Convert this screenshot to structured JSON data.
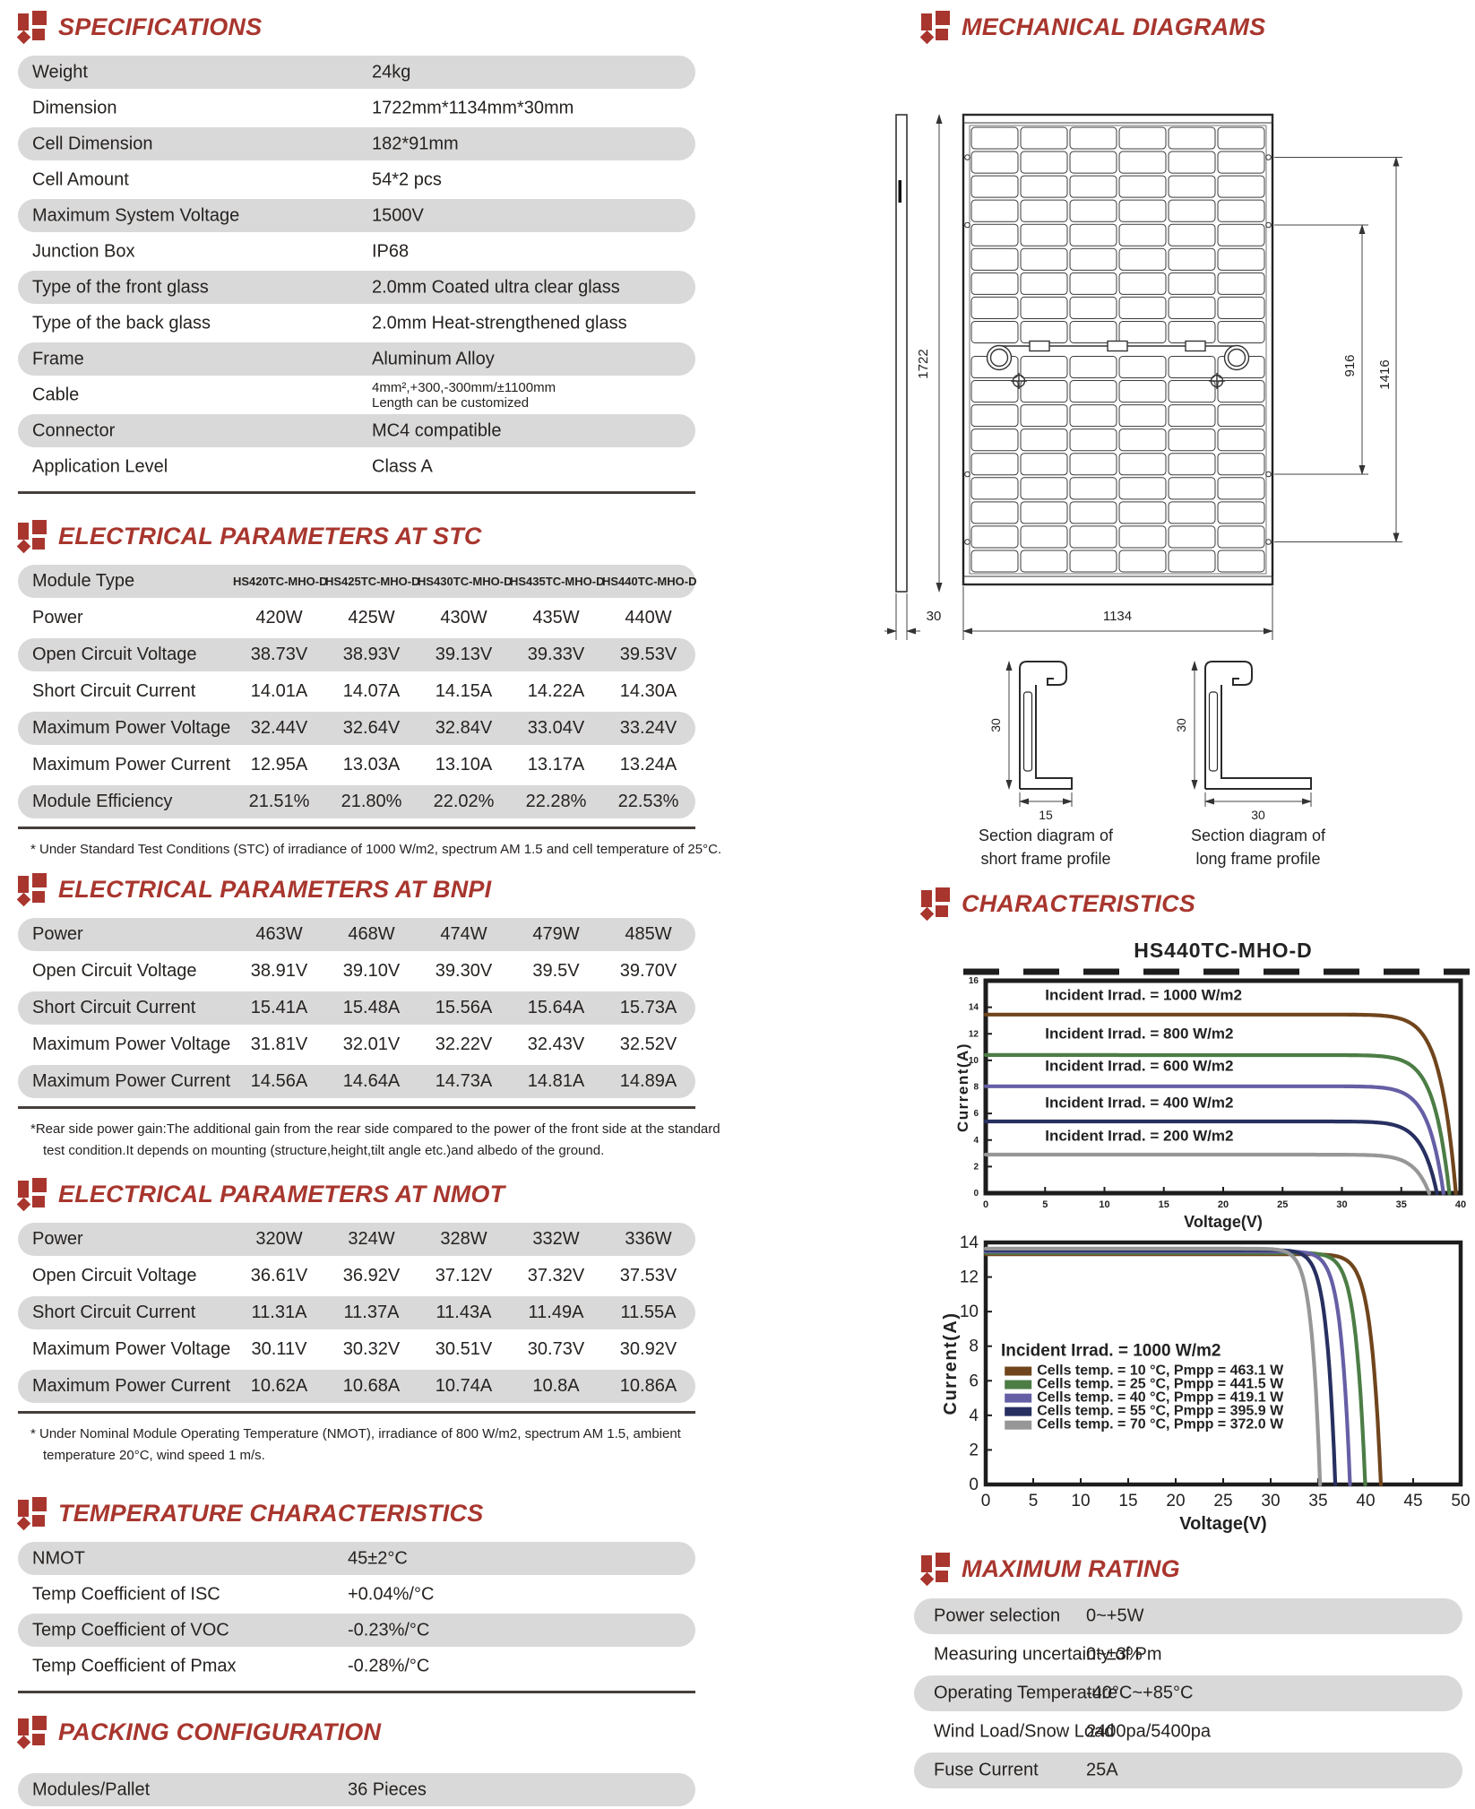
{
  "sections": {
    "specifications": {
      "title": "SPECIFICATIONS",
      "rows": [
        {
          "label": "Weight",
          "value": "24kg"
        },
        {
          "label": "Dimension",
          "value": "1722mm*1134mm*30mm"
        },
        {
          "label": "Cell Dimension",
          "value": "182*91mm"
        },
        {
          "label": "Cell Amount",
          "value": "54*2 pcs"
        },
        {
          "label": "Maximum System Voltage",
          "value": "1500V"
        },
        {
          "label": "Junction Box",
          "value": "IP68"
        },
        {
          "label": "Type of the front glass",
          "value": "2.0mm Coated ultra clear glass"
        },
        {
          "label": "Type of the back glass",
          "value": "2.0mm Heat-strengthened glass"
        },
        {
          "label": "Frame",
          "value": "Aluminum Alloy"
        },
        {
          "label": "Cable",
          "value": "4mm²,+300,-300mm/±1100mm",
          "value2": "Length can be customized"
        },
        {
          "label": "Connector",
          "value": "MC4 compatible"
        },
        {
          "label": "Application Level",
          "value": "Class A"
        }
      ]
    },
    "stc": {
      "title": "ELECTRICAL PARAMETERS AT STC",
      "module_type_label": "Module Type",
      "modules": [
        "HS420TC-MHO-D",
        "HS425TC-MHO-D",
        "HS430TC-MHO-D",
        "HS435TC-MHO-D",
        "HS440TC-MHO-D"
      ],
      "rows": [
        {
          "label": "Power",
          "values": [
            "420W",
            "425W",
            "430W",
            "435W",
            "440W"
          ]
        },
        {
          "label": "Open Circuit Voltage",
          "values": [
            "38.73V",
            "38.93V",
            "39.13V",
            "39.33V",
            "39.53V"
          ]
        },
        {
          "label": "Short Circuit Current",
          "values": [
            "14.01A",
            "14.07A",
            "14.15A",
            "14.22A",
            "14.30A"
          ]
        },
        {
          "label": "Maximum Power Voltage",
          "values": [
            "32.44V",
            "32.64V",
            "32.84V",
            "33.04V",
            "33.24V"
          ]
        },
        {
          "label": "Maximum Power Current",
          "values": [
            "12.95A",
            "13.03A",
            "13.10A",
            "13.17A",
            "13.24A"
          ]
        },
        {
          "label": "Module Efficiency",
          "values": [
            "21.51%",
            "21.80%",
            "22.02%",
            "22.28%",
            "22.53%"
          ]
        }
      ],
      "footnote": "* Under Standard Test Conditions (STC) of irradiance of 1000 W/m2, spectrum AM 1.5 and cell temperature of 25°C."
    },
    "bnpi": {
      "title": "ELECTRICAL PARAMETERS AT BNPI",
      "rows": [
        {
          "label": "Power",
          "values": [
            "463W",
            "468W",
            "474W",
            "479W",
            "485W"
          ]
        },
        {
          "label": "Open Circuit Voltage",
          "values": [
            "38.91V",
            "39.10V",
            "39.30V",
            "39.5V",
            "39.70V"
          ]
        },
        {
          "label": "Short Circuit Current",
          "values": [
            "15.41A",
            "15.48A",
            "15.56A",
            "15.64A",
            "15.73A"
          ]
        },
        {
          "label": "Maximum Power Voltage",
          "values": [
            "31.81V",
            "32.01V",
            "32.22V",
            "32.43V",
            "32.52V"
          ]
        },
        {
          "label": "Maximum Power Current",
          "values": [
            "14.56A",
            "14.64A",
            "14.73A",
            "14.81A",
            "14.89A"
          ]
        }
      ],
      "footnote_lines": [
        "*Rear side power gain:The additional gain from the rear side compared to the power of the front side at the standard",
        "test condition.It depends on mounting (structure,height,tilt angle etc.)and albedo of the ground."
      ]
    },
    "nmot": {
      "title": "ELECTRICAL PARAMETERS AT NMOT",
      "rows": [
        {
          "label": "Power",
          "values": [
            "320W",
            "324W",
            "328W",
            "332W",
            "336W"
          ]
        },
        {
          "label": "Open Circuit Voltage",
          "values": [
            "36.61V",
            "36.92V",
            "37.12V",
            "37.32V",
            "37.53V"
          ]
        },
        {
          "label": "Short Circuit Current",
          "values": [
            "11.31A",
            "11.37A",
            "11.43A",
            "11.49A",
            "11.55A"
          ]
        },
        {
          "label": "Maximum Power Voltage",
          "values": [
            "30.11V",
            "30.32V",
            "30.51V",
            "30.73V",
            "30.92V"
          ]
        },
        {
          "label": "Maximum Power Current",
          "values": [
            "10.62A",
            "10.68A",
            "10.74A",
            "10.8A",
            "10.86A"
          ]
        }
      ],
      "footnote_lines": [
        "* Under Nominal Module Operating Temperature (NMOT), irradiance of 800 W/m2, spectrum AM 1.5, ambient",
        "temperature 20°C, wind speed 1 m/s."
      ]
    },
    "temperature": {
      "title": "TEMPERATURE CHARACTERISTICS",
      "rows": [
        {
          "label": "NMOT",
          "value": "45±2°C"
        },
        {
          "label": "Temp Coefficient of ISC",
          "value": "+0.04%/°C"
        },
        {
          "label": "Temp Coefficient of VOC",
          "value": "-0.23%/°C"
        },
        {
          "label": "Temp Coefficient of Pmax",
          "value": "-0.28%/°C"
        }
      ]
    },
    "packing": {
      "title": "PACKING CONFIGURATION",
      "rows": [
        {
          "label": "Modules/Pallet",
          "value": "36 Pieces"
        }
      ]
    },
    "mechanical": {
      "title": "MECHANICAL DIAGRAMS",
      "panel_height": "1722",
      "panel_width": "1134",
      "panel_depth": "30",
      "hole_span_inner": "916",
      "hole_span_outer": "1416",
      "short_frame": {
        "height": "30",
        "width": "15",
        "caption1": "Section diagram of",
        "caption2": "short frame profile"
      },
      "long_frame": {
        "height": "30",
        "width": "30",
        "caption1": "Section diagram of",
        "caption2": "long frame profile"
      }
    },
    "characteristics": {
      "title": "CHARACTERISTICS"
    },
    "maximum_rating": {
      "title": "MAXIMUM RATING",
      "rows": [
        {
          "label": "Power selection",
          "value": "0~+5W"
        },
        {
          "label": "Measuring uncertainty of Pm",
          "value": "0~±3%"
        },
        {
          "label": "Operating Temperature",
          "value": "-40°C~+85°C"
        },
        {
          "label": "Wind Load/Snow Load",
          "value": "2400pa/5400pa"
        },
        {
          "label": "Fuse Current",
          "value": "25A"
        }
      ]
    }
  },
  "chart_data": [
    {
      "type": "line",
      "title": "HS440TC-MHO-D",
      "xlabel": "Voltage(V)",
      "ylabel": "Current(A)",
      "xlim": [
        0,
        40
      ],
      "ylim": [
        0,
        16
      ],
      "xtick_step": 5,
      "ytick_step": 2,
      "grid": false,
      "legend_position": "labels-above-curves",
      "label_x": 5,
      "knee": 30,
      "series": [
        {
          "name": "Incident Irrad. = 1000 W/m2",
          "isc": 13.45,
          "voc": 39.6,
          "color": "#70451c",
          "label_y": 14.55
        },
        {
          "name": "Incident Irrad. = 800 W/m2",
          "isc": 10.4,
          "voc": 39.05,
          "color": "#4c7d45",
          "label_y": 11.65
        },
        {
          "name": "Incident Irrad. = 600 W/m2",
          "isc": 8.05,
          "voc": 38.55,
          "color": "#655fa5",
          "label_y": 9.2
        },
        {
          "name": "Incident Irrad. = 400 W/m2",
          "isc": 5.4,
          "voc": 38.0,
          "color": "#273060",
          "label_y": 6.45
        },
        {
          "name": "Incident Irrad. = 200 W/m2",
          "isc": 2.9,
          "voc": 37.35,
          "color": "#979797",
          "label_y": 3.95
        }
      ]
    },
    {
      "type": "line",
      "title": "",
      "xlabel": "Voltage(V)",
      "ylabel": "Current(A)",
      "xlim": [
        0,
        50
      ],
      "ylim": [
        0,
        14
      ],
      "xtick_step": 5,
      "ytick_step": 2,
      "grid": false,
      "legend_position": "inside-left",
      "legend_title": "Incident Irrad. = 1000 W/m2",
      "knee": 40,
      "series": [
        {
          "name": "Cells temp. = 10 °C,  Pmpp = 463.1 W",
          "isc": 13.32,
          "voc": 41.6,
          "color": "#70451c"
        },
        {
          "name": "Cells temp. = 25 °C,  Pmpp = 441.5 W",
          "isc": 13.4,
          "voc": 39.95,
          "color": "#4c7d45"
        },
        {
          "name": "Cells temp. = 40 °C,  Pmpp = 419.1 W",
          "isc": 13.48,
          "voc": 38.35,
          "color": "#655fa5"
        },
        {
          "name": "Cells temp. = 55 °C,  Pmpp = 395.9 W",
          "isc": 13.56,
          "voc": 36.8,
          "color": "#273060"
        },
        {
          "name": "Cells temp. = 70 °C,  Pmpp = 372.0 W",
          "isc": 13.64,
          "voc": 35.2,
          "color": "#979797"
        }
      ]
    }
  ]
}
